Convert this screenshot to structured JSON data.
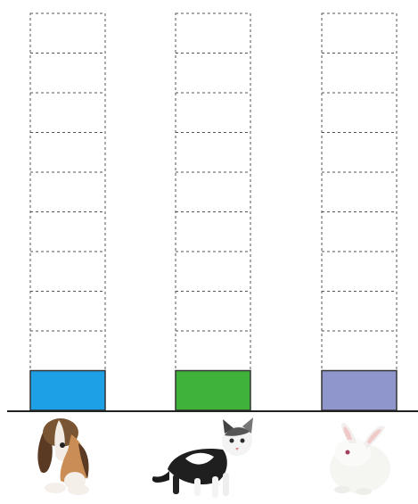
{
  "chart_data": {
    "type": "bar",
    "categories": [
      "dog",
      "cat",
      "rabbit"
    ],
    "values": [
      1,
      1,
      1
    ],
    "ylim": [
      0,
      10
    ],
    "grid": true,
    "colors": [
      "#1ea0e6",
      "#3fb23a",
      "#8e96cc"
    ],
    "icons": [
      "dog-icon",
      "cat-icon",
      "rabbit-icon"
    ]
  }
}
